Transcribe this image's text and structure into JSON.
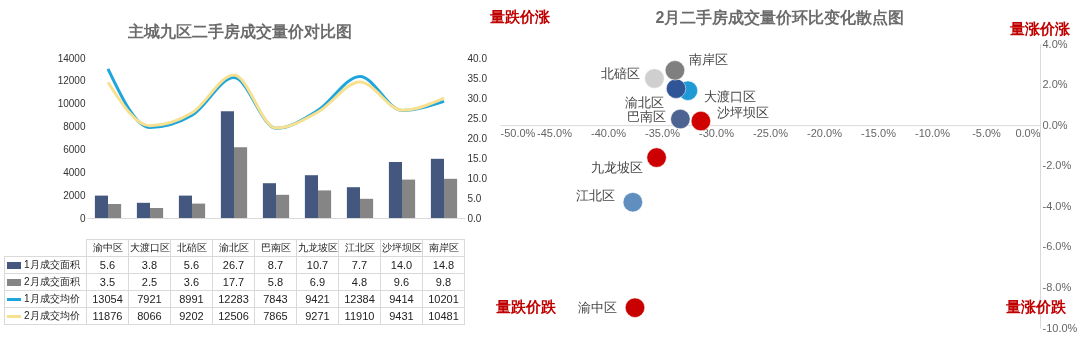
{
  "chart_data": [
    {
      "type": "bar",
      "title": "主城九区二手房成交量价对比图",
      "categories": [
        "渝中区",
        "大渡口区",
        "北碚区",
        "渝北区",
        "巴南区",
        "九龙坡区",
        "江北区",
        "沙坪坝区",
        "南岸区"
      ],
      "series": [
        {
          "name": "1月成交面积",
          "color": "#44587f",
          "axis": "y2",
          "values": [
            5.6,
            3.8,
            5.6,
            26.7,
            8.7,
            10.7,
            7.7,
            14.0,
            14.8
          ],
          "value_labels": [
            "5.6",
            "3.8",
            "5.6",
            "26.7",
            "8.7",
            "10.7",
            "7.7",
            "14.0",
            "14.8"
          ]
        },
        {
          "name": "2月成交面积",
          "color": "#858585",
          "axis": "y2",
          "values": [
            3.5,
            2.5,
            3.6,
            17.7,
            5.8,
            6.9,
            4.8,
            9.6,
            9.8
          ],
          "value_labels": [
            "3.5",
            "2.5",
            "3.6",
            "17.7",
            "5.8",
            "6.9",
            "4.8",
            "9.6",
            "9.8"
          ]
        },
        {
          "name": "1月成交均价",
          "type": "line",
          "color": "#1ea6dc",
          "values": [
            13054,
            7921,
            8991,
            12283,
            7843,
            9421,
            12384,
            9414,
            10201
          ],
          "value_labels": [
            "13054",
            "7921",
            "8991",
            "12283",
            "7843",
            "9421",
            "12384",
            "9414",
            "10201"
          ]
        },
        {
          "name": "2月成交均价",
          "type": "line",
          "color": "#f7e08f",
          "values": [
            11876,
            8066,
            9202,
            12506,
            7865,
            9271,
            11910,
            9431,
            10481
          ],
          "value_labels": [
            "11876",
            "8066",
            "9202",
            "12506",
            "7865",
            "9271",
            "11910",
            "9431",
            "10481"
          ]
        }
      ],
      "ylim": [
        0,
        14000
      ],
      "yticks": [
        0,
        2000,
        4000,
        6000,
        8000,
        10000,
        12000,
        14000
      ],
      "y2lim": [
        0,
        40
      ],
      "y2ticks": [
        {
          "value": 0,
          "label": "0.0"
        },
        {
          "value": 5,
          "label": "5.0"
        },
        {
          "value": 10,
          "label": "10.0"
        },
        {
          "value": 15,
          "label": "15.0"
        },
        {
          "value": 20,
          "label": "20.0"
        },
        {
          "value": 25,
          "label": "25.0"
        },
        {
          "value": 30,
          "label": "30.0"
        },
        {
          "value": 35,
          "label": "35.0"
        },
        {
          "value": 40,
          "label": "40.0"
        }
      ],
      "legend": "bottom",
      "grid": false
    },
    {
      "type": "scatter",
      "title": "2月二手房成交量价环比变化散点图",
      "marker": "circle",
      "legend": false,
      "grid": false,
      "series": [
        {
          "name": "渝中区",
          "color": "#c80000",
          "x": [
            -37.5
          ],
          "values": [
            -9.0
          ]
        },
        {
          "name": "大渡口区",
          "color": "#1f9ad6",
          "x": [
            -32.6
          ],
          "values": [
            1.7
          ]
        },
        {
          "name": "北碚区",
          "color": "#cfcfcf",
          "x": [
            -35.7
          ],
          "values": [
            2.3
          ]
        },
        {
          "name": "渝北区",
          "color": "#2f5597",
          "x": [
            -33.7
          ],
          "values": [
            1.8
          ]
        },
        {
          "name": "巴南区",
          "color": "#4d6391",
          "x": [
            -33.3
          ],
          "values": [
            0.3
          ]
        },
        {
          "name": "九龙坡区",
          "color": "#cc0000",
          "x": [
            -35.5
          ],
          "values": [
            -1.6
          ]
        },
        {
          "name": "江北区",
          "color": "#5f8ebf",
          "x": [
            -37.7
          ],
          "values": [
            -3.8
          ]
        },
        {
          "name": "沙坪坝区",
          "color": "#d00000",
          "x": [
            -31.4
          ],
          "values": [
            0.2
          ]
        },
        {
          "name": "南岸区",
          "color": "#7f7f7f",
          "x": [
            -33.8
          ],
          "values": [
            2.7
          ]
        }
      ],
      "xlim": [
        -50,
        0
      ],
      "xticks": [
        {
          "value": -50,
          "label": "-50.0%"
        },
        {
          "value": -45,
          "label": "-45.0%"
        },
        {
          "value": -40,
          "label": "-40.0%"
        },
        {
          "value": -35,
          "label": "-35.0%"
        },
        {
          "value": -30,
          "label": "-30.0%"
        },
        {
          "value": -25,
          "label": "-25.0%"
        },
        {
          "value": -20,
          "label": "-20.0%"
        },
        {
          "value": -15,
          "label": "-15.0%"
        },
        {
          "value": -10,
          "label": "-10.0%"
        },
        {
          "value": -5,
          "label": "-5.0%"
        },
        {
          "value": 0,
          "label": "0.0%"
        }
      ],
      "ylim": [
        -10,
        4
      ],
      "yticks": [
        {
          "value": -10,
          "label": "-10.0%"
        },
        {
          "value": -8,
          "label": "-8.0%"
        },
        {
          "value": -6,
          "label": "-6.0%"
        },
        {
          "value": -4,
          "label": "-4.0%"
        },
        {
          "value": -2,
          "label": "-2.0%"
        },
        {
          "value": 0,
          "label": "0.0%"
        },
        {
          "value": 2,
          "label": "2.0%"
        },
        {
          "value": 4,
          "label": "4.0%"
        }
      ],
      "annotations": [
        "量跌价涨",
        "量涨价涨",
        "量跌价跌",
        "量涨价跌"
      ]
    }
  ]
}
